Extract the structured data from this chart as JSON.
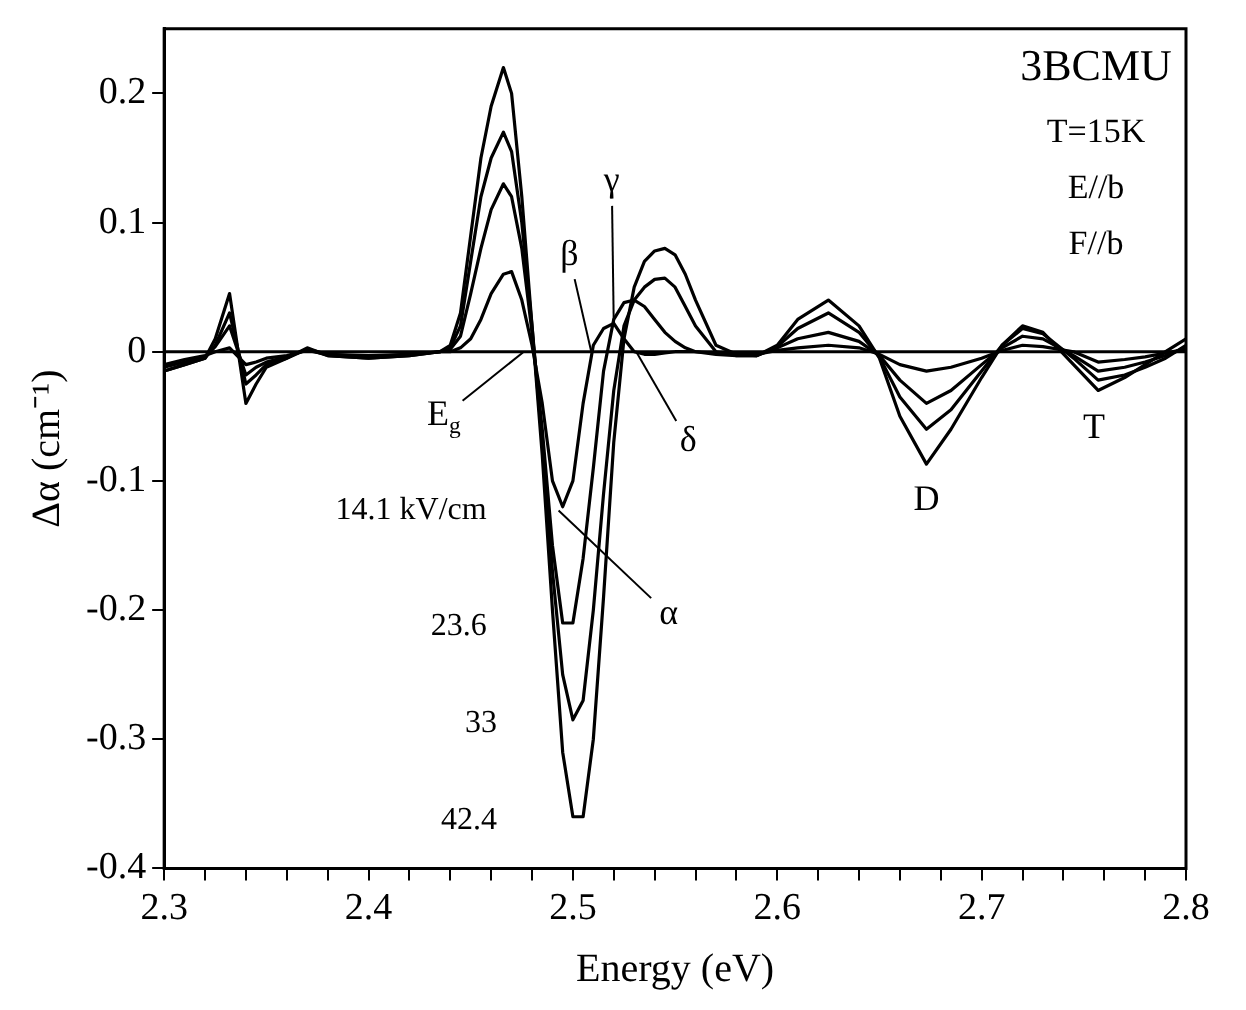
{
  "chart_data": {
    "type": "line",
    "xlabel": "Energy (eV)",
    "ylabel": "Δα (cm⁻¹)",
    "x": [
      2.3,
      2.31,
      2.32,
      2.325,
      2.332,
      2.34,
      2.345,
      2.35,
      2.36,
      2.37,
      2.38,
      2.4,
      2.42,
      2.435,
      2.44,
      2.445,
      2.45,
      2.455,
      2.46,
      2.466,
      2.47,
      2.475,
      2.48,
      2.485,
      2.49,
      2.495,
      2.5,
      2.505,
      2.51,
      2.515,
      2.52,
      2.525,
      2.53,
      2.535,
      2.54,
      2.545,
      2.55,
      2.555,
      2.56,
      2.57,
      2.58,
      2.59,
      2.6,
      2.61,
      2.625,
      2.64,
      2.65,
      2.66,
      2.673,
      2.685,
      2.7,
      2.71,
      2.72,
      2.73,
      2.745,
      2.757,
      2.77,
      2.78,
      2.79,
      2.8
    ],
    "series": [
      {
        "name": "14.1 kV/cm",
        "color": "#000000",
        "values": [
          -0.01,
          -0.006,
          -0.003,
          0.0,
          0.003,
          -0.01,
          -0.008,
          -0.005,
          -0.003,
          0.001,
          -0.002,
          -0.003,
          -0.002,
          0,
          0,
          0.003,
          0.01,
          0.025,
          0.045,
          0.06,
          0.062,
          0.04,
          0.005,
          -0.04,
          -0.1,
          -0.12,
          -0.1,
          -0.04,
          0.005,
          0.018,
          0.022,
          0.01,
          0.0,
          -0.002,
          -0.002,
          -0.001,
          0,
          0,
          0,
          -0.001,
          -0.002,
          -0.002,
          0.001,
          0.003,
          0.005,
          0.003,
          -0.002,
          -0.01,
          -0.015,
          -0.012,
          -0.005,
          0.001,
          0.005,
          0.004,
          0,
          -0.008,
          -0.006,
          -0.004,
          -0.001,
          0.002
        ]
      },
      {
        "name": "23.6",
        "color": "#000000",
        "values": [
          -0.012,
          -0.008,
          -0.004,
          0.004,
          0.02,
          -0.018,
          -0.012,
          -0.008,
          -0.004,
          0.002,
          -0.002,
          -0.004,
          -0.002,
          0,
          0.002,
          0.012,
          0.045,
          0.08,
          0.11,
          0.13,
          0.12,
          0.08,
          0.015,
          -0.06,
          -0.15,
          -0.21,
          -0.21,
          -0.16,
          -0.09,
          -0.015,
          0.025,
          0.038,
          0.04,
          0.035,
          0.025,
          0.015,
          0.008,
          0.003,
          0.0,
          -0.002,
          -0.003,
          -0.003,
          0.003,
          0.01,
          0.015,
          0.008,
          -0.003,
          -0.022,
          -0.04,
          -0.03,
          -0.01,
          0.003,
          0.012,
          0.01,
          -0.003,
          -0.015,
          -0.012,
          -0.008,
          -0.003,
          0.003
        ]
      },
      {
        "name": "33",
        "color": "#000000",
        "values": [
          -0.015,
          -0.01,
          -0.005,
          0.005,
          0.03,
          -0.025,
          -0.018,
          -0.01,
          -0.005,
          0.002,
          -0.003,
          -0.005,
          -0.003,
          0,
          0.003,
          0.02,
          0.07,
          0.12,
          0.15,
          0.17,
          0.155,
          0.1,
          0.02,
          -0.07,
          -0.17,
          -0.25,
          -0.285,
          -0.27,
          -0.2,
          -0.11,
          -0.03,
          0.02,
          0.04,
          0.05,
          0.056,
          0.057,
          0.05,
          0.035,
          0.02,
          0.0,
          -0.003,
          -0.003,
          0.004,
          0.018,
          0.03,
          0.015,
          -0.004,
          -0.035,
          -0.06,
          -0.045,
          -0.015,
          0.005,
          0.018,
          0.014,
          -0.005,
          -0.022,
          -0.018,
          -0.012,
          -0.005,
          0.005
        ]
      },
      {
        "name": "42.4",
        "color": "#000000",
        "values": [
          -0.015,
          -0.01,
          -0.005,
          0.01,
          0.045,
          -0.04,
          -0.025,
          -0.012,
          -0.005,
          0.003,
          -0.003,
          -0.005,
          -0.003,
          0,
          0.005,
          0.03,
          0.09,
          0.15,
          0.19,
          0.22,
          0.2,
          0.12,
          0.02,
          -0.08,
          -0.2,
          -0.31,
          -0.36,
          -0.36,
          -0.3,
          -0.19,
          -0.07,
          0.01,
          0.05,
          0.07,
          0.078,
          0.08,
          0.075,
          0.06,
          0.04,
          0.005,
          -0.002,
          -0.003,
          0.005,
          0.025,
          0.04,
          0.02,
          -0.005,
          -0.05,
          -0.087,
          -0.06,
          -0.02,
          0.005,
          0.02,
          0.015,
          -0.01,
          -0.03,
          -0.02,
          -0.01,
          0.0,
          0.01
        ]
      }
    ],
    "xlim": [
      2.3,
      2.8
    ],
    "xticks": [
      2.3,
      {
        "value": 2.32,
        "label": null
      },
      {
        "value": 2.34,
        "label": null
      },
      {
        "value": 2.36,
        "label": null
      },
      {
        "value": 2.38,
        "label": null
      },
      2.4,
      {
        "value": 2.42,
        "label": null
      },
      {
        "value": 2.44,
        "label": null
      },
      {
        "value": 2.46,
        "label": null
      },
      {
        "value": 2.48,
        "label": null
      },
      2.5,
      {
        "value": 2.52,
        "label": null
      },
      {
        "value": 2.54,
        "label": null
      },
      {
        "value": 2.56,
        "label": null
      },
      {
        "value": 2.58,
        "label": null
      },
      2.6,
      {
        "value": 2.62,
        "label": null
      },
      {
        "value": 2.64,
        "label": null
      },
      {
        "value": 2.66,
        "label": null
      },
      {
        "value": 2.68,
        "label": null
      },
      2.7,
      {
        "value": 2.72,
        "label": null
      },
      {
        "value": 2.74,
        "label": null
      },
      {
        "value": 2.76,
        "label": null
      },
      {
        "value": 2.78,
        "label": null
      },
      2.8
    ],
    "ylim": [
      -0.4,
      0.25
    ],
    "yticks": [
      -0.4,
      -0.3,
      -0.2,
      -0.1,
      0,
      0.1,
      0.2
    ],
    "ref_lines": [
      {
        "axis": "y",
        "value": 0,
        "color": "#000000"
      }
    ],
    "grid": false,
    "legend": false,
    "marker": "none",
    "line_style": "solid",
    "annotations": [
      "3BCMU",
      "T=15K",
      "E//b",
      "F//b",
      {
        "text": "E$_{g}$",
        "x": 2.476,
        "y": 0
      },
      {
        "text": "α",
        "x": 2.493,
        "y": -0.123
      },
      {
        "text": "β",
        "x": 2.509,
        "y": 0
      },
      {
        "text": "γ",
        "x": 2.52,
        "y": 0.02
      },
      {
        "text": "δ",
        "x": 2.531,
        "y": 0
      },
      {
        "text": "D",
        "x": 2.673,
        "y": -0.087
      },
      {
        "text": "T",
        "x": 2.755,
        "y": -0.03
      }
    ]
  }
}
